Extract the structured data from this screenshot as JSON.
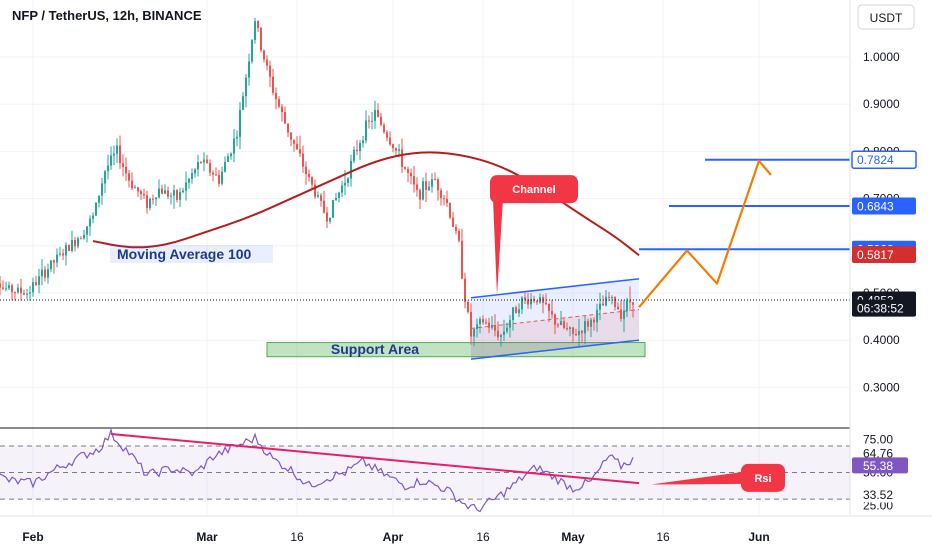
{
  "header": {
    "symbol_title": "NFP / TetherUS, 12h, BINANCE",
    "currency_button": "USDT"
  },
  "colors": {
    "up": "#26a69a",
    "down": "#ef5350",
    "ma": "#b71c1c",
    "channel": "#2962ff",
    "projection": "#f57c00",
    "rsi": "#7e57c2",
    "rsi_trend": "#e91e63",
    "callout": "#f23645",
    "level_line": "#2962ff"
  },
  "chart_data": {
    "type": "candlestick",
    "symbol": "NFP / TetherUS",
    "interval": "12h",
    "exchange": "BINANCE",
    "currency": "USDT",
    "y_axis": {
      "ticks": [
        "1.0000",
        "0.9000",
        "0.8000",
        "0.7000",
        "0.6000",
        "0.5000",
        "0.4000",
        "0.3000"
      ],
      "ylim": [
        0.22,
        1.12
      ]
    },
    "x_axis": {
      "ticks": [
        "Feb",
        "Mar",
        "16",
        "Apr",
        "16",
        "May",
        "16",
        "Jun"
      ]
    },
    "price_path": [
      [
        "2024-01-24",
        0.57
      ],
      [
        "2024-01-27",
        0.51
      ],
      [
        "2024-01-31",
        0.5
      ],
      [
        "2024-02-04",
        0.56
      ],
      [
        "2024-02-08",
        0.61
      ],
      [
        "2024-02-11",
        0.66
      ],
      [
        "2024-02-13",
        0.76
      ],
      [
        "2024-02-15",
        0.8
      ],
      [
        "2024-02-17",
        0.74
      ],
      [
        "2024-02-20",
        0.69
      ],
      [
        "2024-02-22",
        0.72
      ],
      [
        "2024-02-25",
        0.7
      ],
      [
        "2024-02-29",
        0.78
      ],
      [
        "2024-03-03",
        0.74
      ],
      [
        "2024-03-06",
        0.84
      ],
      [
        "2024-03-08",
        1.0
      ],
      [
        "2024-03-09",
        1.08
      ],
      [
        "2024-03-10",
        1.02
      ],
      [
        "2024-03-12",
        0.93
      ],
      [
        "2024-03-14",
        0.86
      ],
      [
        "2024-03-16",
        0.8
      ],
      [
        "2024-03-18",
        0.74
      ],
      [
        "2024-03-21",
        0.66
      ],
      [
        "2024-03-24",
        0.74
      ],
      [
        "2024-03-27",
        0.84
      ],
      [
        "2024-03-29",
        0.88
      ],
      [
        "2024-04-02",
        0.79
      ],
      [
        "2024-04-05",
        0.71
      ],
      [
        "2024-04-08",
        0.74
      ],
      [
        "2024-04-10",
        0.69
      ],
      [
        "2024-04-12",
        0.6
      ],
      [
        "2024-04-13",
        0.49
      ],
      [
        "2024-04-14",
        0.41
      ],
      [
        "2024-04-16",
        0.44
      ],
      [
        "2024-04-19",
        0.41
      ],
      [
        "2024-04-22",
        0.48
      ],
      [
        "2024-04-25",
        0.49
      ],
      [
        "2024-04-28",
        0.44
      ],
      [
        "2024-05-01",
        0.41
      ],
      [
        "2024-05-04",
        0.44
      ],
      [
        "2024-05-07",
        0.49
      ],
      [
        "2024-05-09",
        0.46
      ],
      [
        "2024-05-11",
        0.49
      ]
    ],
    "moving_average_100": [
      [
        "2024-02-11",
        0.61
      ],
      [
        "2024-02-17",
        0.595
      ],
      [
        "2024-02-23",
        0.6
      ],
      [
        "2024-03-01",
        0.63
      ],
      [
        "2024-03-08",
        0.66
      ],
      [
        "2024-03-15",
        0.7
      ],
      [
        "2024-03-22",
        0.74
      ],
      [
        "2024-03-29",
        0.78
      ],
      [
        "2024-04-05",
        0.8
      ],
      [
        "2024-04-12",
        0.795
      ],
      [
        "2024-04-19",
        0.77
      ],
      [
        "2024-04-26",
        0.72
      ],
      [
        "2024-05-03",
        0.66
      ],
      [
        "2024-05-08",
        0.62
      ],
      [
        "2024-05-12",
        0.58
      ]
    ],
    "price_labels": [
      {
        "label": "0.7824",
        "value": 0.7824,
        "style": "outline",
        "line": true,
        "line_from": "2024-05-23"
      },
      {
        "label": "0.6843",
        "value": 0.6843,
        "style": "filled-blue",
        "line": true,
        "line_from": "2024-05-17"
      },
      {
        "label": "0.5928",
        "value": 0.5928,
        "style": "filled-blue",
        "line": true,
        "line_from": "2024-05-12"
      },
      {
        "label": "0.5817",
        "value": 0.5817,
        "style": "filled-red",
        "line": false
      },
      {
        "label": "0.4853",
        "value": 0.4853,
        "style": "dark",
        "line": false,
        "dotted": true
      },
      {
        "label": "06:38:52",
        "value": 0.468,
        "style": "dark-countdown",
        "line": false
      }
    ],
    "channel": {
      "upper": [
        [
          "2024-04-14",
          0.49
        ],
        [
          "2024-05-12",
          0.53
        ]
      ],
      "lower": [
        [
          "2024-04-14",
          0.36
        ],
        [
          "2024-05-12",
          0.4
        ]
      ]
    },
    "support_area": {
      "from": "2024-03-11",
      "to": "2024-05-13",
      "low": 0.365,
      "high": 0.395
    },
    "projection": [
      [
        "2024-05-12",
        0.47
      ],
      [
        "2024-05-20",
        0.59
      ],
      [
        "2024-05-25",
        0.52
      ],
      [
        "2024-06-01",
        0.78
      ],
      [
        "2024-06-03",
        0.75
      ]
    ],
    "annotations": {
      "moving_average": "Moving Average 100",
      "support": "Support Area",
      "channel": "Channel",
      "rsi": "Rsi"
    },
    "rsi": {
      "ticks": [
        "75.00",
        "64.76",
        "50.00",
        "33.52",
        "25.00"
      ],
      "ylim": [
        18,
        82
      ],
      "bands": [
        70,
        50,
        30
      ],
      "labels": [
        {
          "label": "64.76",
          "value": 64.76,
          "style": "plain"
        },
        {
          "label": "55.38",
          "value": 55.38,
          "style": "filled-purple"
        },
        {
          "label": "33.52",
          "value": 33.52,
          "style": "plain"
        }
      ],
      "path": [
        [
          "2024-01-24",
          52
        ],
        [
          "2024-01-28",
          44
        ],
        [
          "2024-02-01",
          42
        ],
        [
          "2024-02-05",
          53
        ],
        [
          "2024-02-09",
          62
        ],
        [
          "2024-02-12",
          68
        ],
        [
          "2024-02-14",
          79
        ],
        [
          "2024-02-17",
          65
        ],
        [
          "2024-02-20",
          48
        ],
        [
          "2024-02-24",
          53
        ],
        [
          "2024-02-28",
          49
        ],
        [
          "2024-03-02",
          62
        ],
        [
          "2024-03-06",
          70
        ],
        [
          "2024-03-09",
          76
        ],
        [
          "2024-03-12",
          60
        ],
        [
          "2024-03-15",
          52
        ],
        [
          "2024-03-18",
          40
        ],
        [
          "2024-03-21",
          46
        ],
        [
          "2024-03-24",
          50
        ],
        [
          "2024-03-27",
          58
        ],
        [
          "2024-03-30",
          50
        ],
        [
          "2024-04-03",
          40
        ],
        [
          "2024-04-06",
          44
        ],
        [
          "2024-04-10",
          37
        ],
        [
          "2024-04-13",
          26
        ],
        [
          "2024-04-15",
          22
        ],
        [
          "2024-04-18",
          30
        ],
        [
          "2024-04-21",
          40
        ],
        [
          "2024-04-23",
          48
        ],
        [
          "2024-04-25",
          54
        ],
        [
          "2024-04-28",
          46
        ],
        [
          "2024-05-01",
          38
        ],
        [
          "2024-05-04",
          43
        ],
        [
          "2024-05-07",
          62
        ],
        [
          "2024-05-09",
          55
        ],
        [
          "2024-05-11",
          60
        ]
      ],
      "trendline": [
        [
          "2024-02-14",
          79
        ],
        [
          "2024-05-12",
          42
        ]
      ]
    }
  }
}
